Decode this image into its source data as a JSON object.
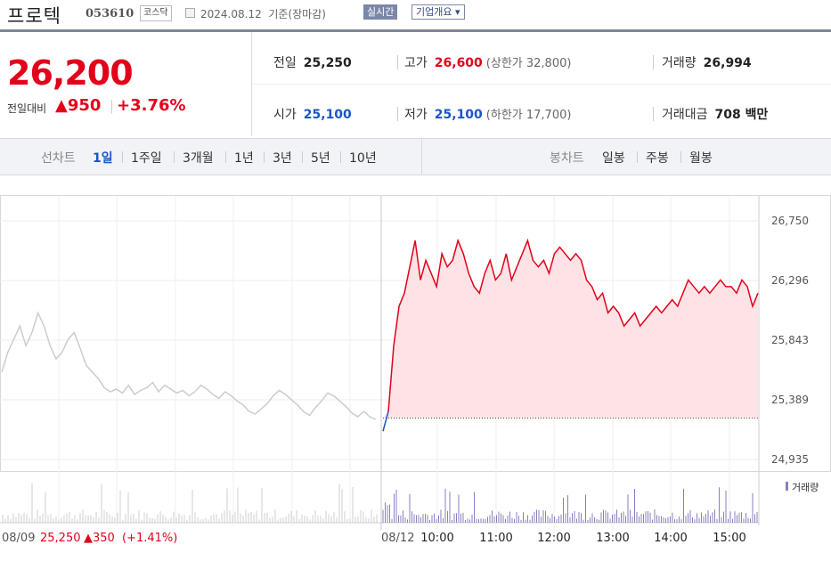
{
  "header": {
    "stock_name": "프로텍",
    "stock_code": "053610",
    "market": "코스닥",
    "date": "2024.08.12",
    "date_suffix": "기준(장마감)",
    "realtime_label": "실시간",
    "company_button": "기업개요 ▾"
  },
  "price": {
    "current": "26,200",
    "change_label": "전일대비",
    "change": "▲950",
    "change_rate": "+3.76%"
  },
  "stats": {
    "prev_label": "전일",
    "prev": "25,250",
    "high_label": "고가",
    "high": "26,600",
    "upper_limit": "(상한가 32,800)",
    "volume_label": "거래량",
    "volume": "26,994",
    "open_label": "시가",
    "open": "25,100",
    "low_label": "저가",
    "low": "25,100",
    "lower_limit": "(하한가 17,700)",
    "amount_label": "거래대금",
    "amount": "708 백만"
  },
  "period_tabs": {
    "title": "선차트",
    "items": [
      "1일",
      "1주일",
      "3개월",
      "1년",
      "3년",
      "5년",
      "10년"
    ],
    "selected": "1일"
  },
  "candle_tabs": {
    "title": "봉차트",
    "items": [
      "일봉",
      "주봉",
      "월봉"
    ]
  },
  "colors": {
    "up": "#e3001b",
    "down": "#1a55c8",
    "prev_line": "#cccccc",
    "fill": "#fde3e5",
    "volume": "#8a7fbf"
  },
  "chart_data": {
    "type": "line",
    "ylim": [
      24935,
      26750
    ],
    "yticks": [
      "26,750",
      "26,296",
      "25,843",
      "25,389",
      "24,935"
    ],
    "prev_close": 25250,
    "prev_day": {
      "label": "08/09",
      "close": "25,250",
      "change": "▲350",
      "rate": "(+1.41%)",
      "values": [
        25600,
        25750,
        25850,
        25950,
        25800,
        25900,
        26050,
        25950,
        25800,
        25700,
        25750,
        25850,
        25900,
        25780,
        25650,
        25600,
        25550,
        25480,
        25450,
        25470,
        25440,
        25500,
        25430,
        25460,
        25480,
        25520,
        25450,
        25500,
        25470,
        25440,
        25460,
        25420,
        25450,
        25500,
        25470,
        25430,
        25400,
        25450,
        25420,
        25380,
        25350,
        25300,
        25280,
        25320,
        25360,
        25420,
        25460,
        25430,
        25390,
        25350,
        25300,
        25270,
        25330,
        25380,
        25440,
        25420,
        25380,
        25340,
        25290,
        25260,
        25300,
        25260,
        25240
      ]
    },
    "today": {
      "label": "08/12",
      "times": [
        "10:00",
        "11:00",
        "12:00",
        "13:00",
        "14:00",
        "15:00"
      ],
      "values": [
        25150,
        25300,
        25800,
        26100,
        26200,
        26400,
        26600,
        26300,
        26450,
        26350,
        26250,
        26500,
        26400,
        26450,
        26600,
        26500,
        26350,
        26250,
        26200,
        26350,
        26450,
        26300,
        26350,
        26500,
        26300,
        26400,
        26500,
        26600,
        26450,
        26400,
        26450,
        26350,
        26500,
        26550,
        26500,
        26450,
        26500,
        26450,
        26300,
        26250,
        26150,
        26200,
        26050,
        26100,
        26050,
        25950,
        26000,
        26050,
        25950,
        26000,
        26050,
        26100,
        26050,
        26100,
        26150,
        26100,
        26200,
        26300,
        26250,
        26200,
        26250,
        26200,
        26250,
        26300,
        26250,
        26250,
        26200,
        26300,
        26250,
        26100,
        26200
      ]
    },
    "volume_label": "거래량"
  }
}
